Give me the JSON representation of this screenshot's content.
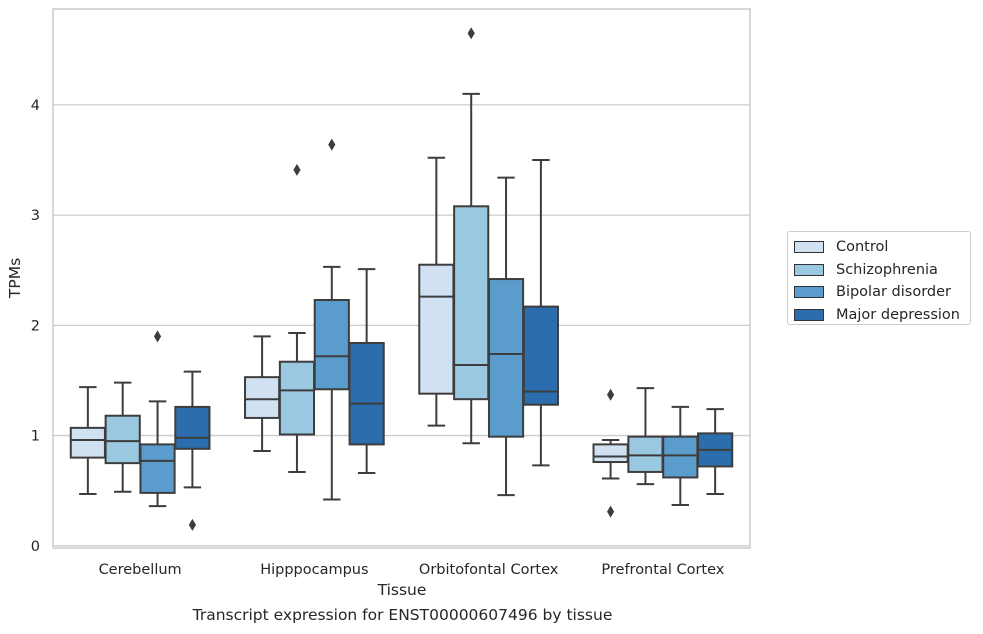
{
  "chart_data": {
    "type": "box",
    "xlabel": "Tissue",
    "ylabel": "TPMs",
    "caption": "Transcript expression for ENST00000607496 by tissue",
    "ylim": [
      -0.02,
      4.87
    ],
    "yticks": [
      0,
      1,
      2,
      3,
      4
    ],
    "grid": "horizontal",
    "legend_position": "right",
    "categories": [
      "Cerebellum",
      "Hipppocampus",
      "Orbitofontal Cortex",
      "Prefrontal Cortex"
    ],
    "series": [
      {
        "name": "Control",
        "color": "#d0e1f2",
        "boxes": [
          {
            "whislo": 0.47,
            "q1": 0.8,
            "med": 0.96,
            "q3": 1.07,
            "whishi": 1.44,
            "fliers": []
          },
          {
            "whislo": 0.86,
            "q1": 1.16,
            "med": 1.33,
            "q3": 1.53,
            "whishi": 1.9,
            "fliers": []
          },
          {
            "whislo": 1.09,
            "q1": 1.38,
            "med": 2.26,
            "q3": 2.55,
            "whishi": 3.52,
            "fliers": []
          },
          {
            "whislo": 0.61,
            "q1": 0.76,
            "med": 0.81,
            "q3": 0.92,
            "whishi": 0.96,
            "fliers": [
              1.37,
              0.31
            ]
          }
        ]
      },
      {
        "name": "Schizophrenia",
        "color": "#9ac8e0",
        "boxes": [
          {
            "whislo": 0.49,
            "q1": 0.75,
            "med": 0.95,
            "q3": 1.18,
            "whishi": 1.48,
            "fliers": []
          },
          {
            "whislo": 0.67,
            "q1": 1.01,
            "med": 1.41,
            "q3": 1.67,
            "whishi": 1.93,
            "fliers": [
              3.41
            ]
          },
          {
            "whislo": 0.93,
            "q1": 1.33,
            "med": 1.64,
            "q3": 3.08,
            "whishi": 4.1,
            "fliers": [
              4.65
            ]
          },
          {
            "whislo": 0.56,
            "q1": 0.67,
            "med": 0.82,
            "q3": 0.99,
            "whishi": 1.43,
            "fliers": []
          }
        ]
      },
      {
        "name": "Bipolar disorder",
        "color": "#5a9ccb",
        "boxes": [
          {
            "whislo": 0.36,
            "q1": 0.48,
            "med": 0.77,
            "q3": 0.92,
            "whishi": 1.31,
            "fliers": [
              1.9
            ]
          },
          {
            "whislo": 0.42,
            "q1": 1.42,
            "med": 1.72,
            "q3": 2.23,
            "whishi": 2.53,
            "fliers": [
              3.64
            ]
          },
          {
            "whislo": 0.46,
            "q1": 0.99,
            "med": 1.74,
            "q3": 2.42,
            "whishi": 3.34,
            "fliers": []
          },
          {
            "whislo": 0.37,
            "q1": 0.62,
            "med": 0.82,
            "q3": 0.99,
            "whishi": 1.26,
            "fliers": []
          }
        ]
      },
      {
        "name": "Major depression",
        "color": "#2c6ead",
        "boxes": [
          {
            "whislo": 0.53,
            "q1": 0.88,
            "med": 0.98,
            "q3": 1.26,
            "whishi": 1.58,
            "fliers": [
              0.19
            ]
          },
          {
            "whislo": 0.66,
            "q1": 0.92,
            "med": 1.29,
            "q3": 1.84,
            "whishi": 2.51,
            "fliers": []
          },
          {
            "whislo": 0.73,
            "q1": 1.28,
            "med": 1.4,
            "q3": 2.17,
            "whishi": 3.5,
            "fliers": []
          },
          {
            "whislo": 0.47,
            "q1": 0.72,
            "med": 0.87,
            "q3": 1.02,
            "whishi": 1.24,
            "fliers": []
          }
        ]
      }
    ]
  }
}
